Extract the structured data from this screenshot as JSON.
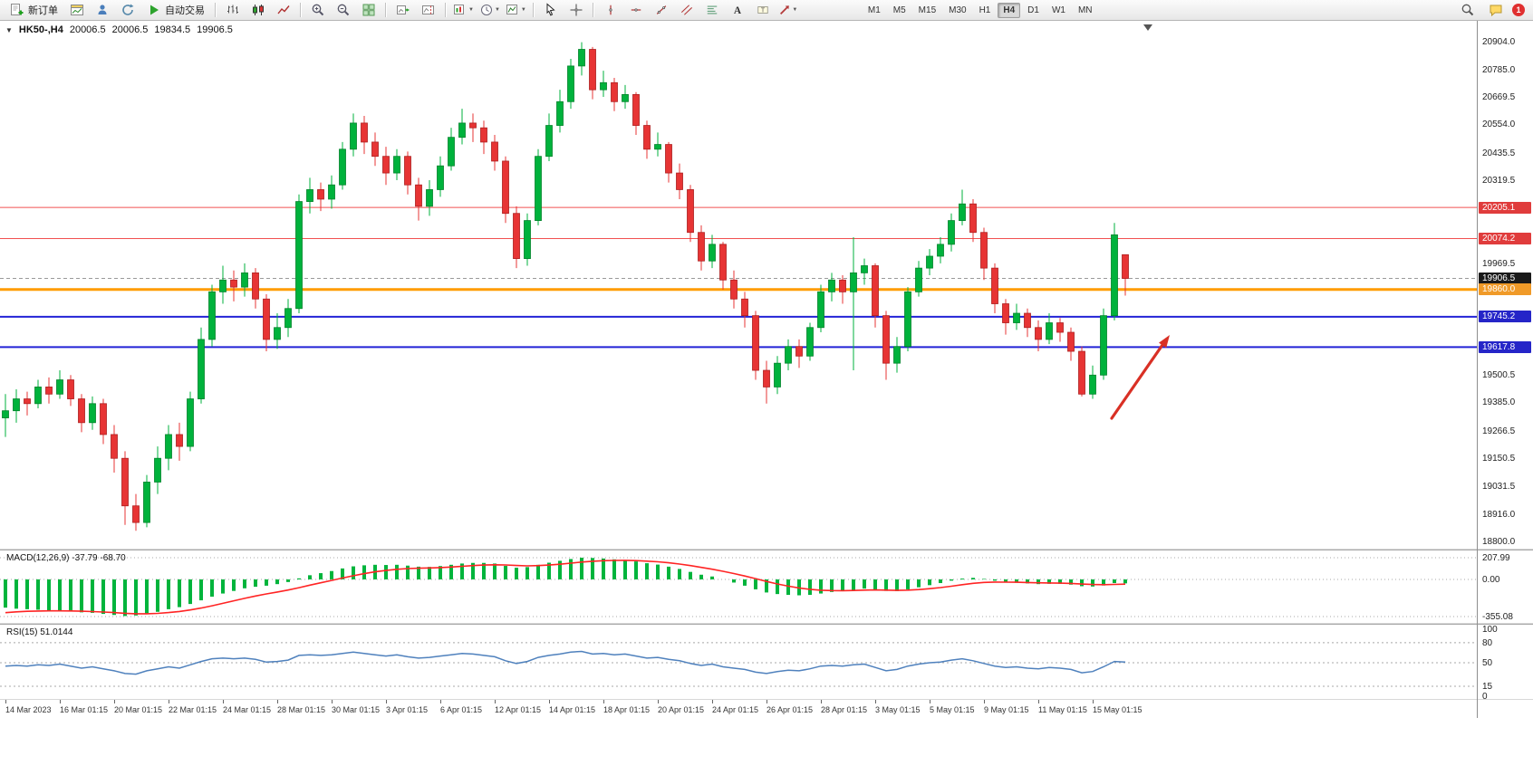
{
  "toolbar": {
    "new_order_label": "新订单",
    "auto_trading_label": "自动交易",
    "timeframes": [
      "M1",
      "M5",
      "M15",
      "M30",
      "H1",
      "H4",
      "D1",
      "W1",
      "MN"
    ],
    "active_timeframe": "H4",
    "notification_count": "1"
  },
  "icons": {
    "toolbar": [
      "new-order-icon",
      "new-chart-icon",
      "profiles-icon",
      "refresh-icon",
      "play-icon",
      "bars-chart-icon",
      "candlestick-chart-icon",
      "line-chart-icon",
      "zoom-in-icon",
      "zoom-out-icon",
      "tile-windows-icon",
      "auto-scroll-icon",
      "chart-shift-icon",
      "chart-dropdown-icon",
      "periods-clock-icon",
      "indicators-icon",
      "cursor-icon",
      "crosshair-icon",
      "vertical-line-icon",
      "horizontal-line-icon",
      "trendline-icon",
      "channel-icon",
      "fibonacci-icon",
      "text-icon",
      "label-icon",
      "arrow-shapes-icon",
      "search-icon",
      "chat-icon"
    ]
  },
  "header": {
    "symbol": "HK50-,H4",
    "open": "20006.5",
    "high": "20006.5",
    "low": "19834.5",
    "close": "19906.5"
  },
  "colors": {
    "bull": "#00b23c",
    "bull_stroke": "#00822a",
    "bear": "#e73434",
    "bear_stroke": "#ad1f1f",
    "level_red": "#f25050",
    "level_orange": "#ff9c00",
    "level_blue": "#2323d6",
    "badge_red": "#e03c3c",
    "badge_orange": "#f09a28",
    "badge_blue": "#2525c8",
    "badge_black": "#1a1a1a",
    "macd_hist": "#00b43c",
    "macd_signal": "#ff2424",
    "rsi_line": "#4f81bd",
    "arrow": "#d93025",
    "grid_dot": "#a8a8a8"
  },
  "chart": {
    "current_price": 19906.5,
    "price_axis": {
      "labels": [
        20904.0,
        20785.0,
        20669.5,
        20554.0,
        20435.5,
        20319.5,
        19969.5,
        19850.5,
        19500.5,
        19385.0,
        19266.5,
        19150.5,
        19031.5,
        18916.0,
        18800.0
      ],
      "badges": [
        {
          "text": "20205.1",
          "price": 20205.1,
          "bg": "badge_red"
        },
        {
          "text": "20074.2",
          "price": 20074.2,
          "bg": "badge_red"
        },
        {
          "text": "19906.5",
          "price": 19906.5,
          "bg": "badge_black"
        },
        {
          "text": "19860.0",
          "price": 19860.0,
          "bg": "badge_orange"
        },
        {
          "text": "19745.2",
          "price": 19745.2,
          "bg": "badge_blue"
        },
        {
          "text": "19617.8",
          "price": 19617.8,
          "bg": "badge_blue"
        }
      ]
    },
    "levels": [
      {
        "price": 20205.1,
        "color": "level_red",
        "width": 1
      },
      {
        "price": 20074.2,
        "color": "level_red",
        "width": 1
      },
      {
        "price": 19860.0,
        "color": "level_orange",
        "width": 3
      },
      {
        "price": 19745.2,
        "color": "level_blue",
        "width": 2
      },
      {
        "price": 19617.8,
        "color": "level_blue",
        "width": 2
      }
    ],
    "candles": [
      [
        19320,
        19420,
        19240,
        19350
      ],
      [
        19350,
        19440,
        19300,
        19400
      ],
      [
        19400,
        19430,
        19330,
        19380
      ],
      [
        19380,
        19480,
        19360,
        19450
      ],
      [
        19450,
        19490,
        19380,
        19420
      ],
      [
        19420,
        19520,
        19400,
        19480
      ],
      [
        19480,
        19500,
        19370,
        19400
      ],
      [
        19400,
        19420,
        19260,
        19300
      ],
      [
        19300,
        19410,
        19270,
        19380
      ],
      [
        19380,
        19400,
        19210,
        19250
      ],
      [
        19250,
        19290,
        19090,
        19150
      ],
      [
        19150,
        19180,
        18870,
        18950
      ],
      [
        18950,
        19000,
        18845,
        18880
      ],
      [
        18880,
        19080,
        18860,
        19050
      ],
      [
        19050,
        19200,
        19000,
        19150
      ],
      [
        19150,
        19290,
        19100,
        19250
      ],
      [
        19250,
        19300,
        19140,
        19200
      ],
      [
        19200,
        19430,
        19180,
        19400
      ],
      [
        19400,
        19700,
        19380,
        19650
      ],
      [
        19650,
        19880,
        19620,
        19850
      ],
      [
        19850,
        19960,
        19800,
        19900
      ],
      [
        19900,
        19940,
        19810,
        19870
      ],
      [
        19870,
        19970,
        19830,
        19930
      ],
      [
        19930,
        19950,
        19780,
        19820
      ],
      [
        19820,
        19840,
        19600,
        19650
      ],
      [
        19650,
        19760,
        19610,
        19700
      ],
      [
        19700,
        19820,
        19660,
        19780
      ],
      [
        19780,
        20260,
        19760,
        20230
      ],
      [
        20230,
        20330,
        20180,
        20280
      ],
      [
        20280,
        20310,
        20190,
        20240
      ],
      [
        20240,
        20340,
        20200,
        20300
      ],
      [
        20300,
        20480,
        20280,
        20450
      ],
      [
        20450,
        20600,
        20420,
        20560
      ],
      [
        20560,
        20590,
        20430,
        20480
      ],
      [
        20480,
        20520,
        20380,
        20420
      ],
      [
        20420,
        20460,
        20300,
        20350
      ],
      [
        20350,
        20450,
        20320,
        20420
      ],
      [
        20420,
        20440,
        20260,
        20300
      ],
      [
        20300,
        20330,
        20150,
        20210
      ],
      [
        20210,
        20320,
        20170,
        20280
      ],
      [
        20280,
        20420,
        20250,
        20380
      ],
      [
        20380,
        20540,
        20360,
        20500
      ],
      [
        20500,
        20620,
        20470,
        20560
      ],
      [
        20560,
        20600,
        20480,
        20540
      ],
      [
        20540,
        20570,
        20430,
        20480
      ],
      [
        20480,
        20510,
        20360,
        20400
      ],
      [
        20400,
        20420,
        20140,
        20180
      ],
      [
        20180,
        20210,
        19950,
        19990
      ],
      [
        19990,
        20180,
        19960,
        20150
      ],
      [
        20150,
        20450,
        20130,
        20420
      ],
      [
        20420,
        20600,
        20400,
        20550
      ],
      [
        20550,
        20700,
        20520,
        20650
      ],
      [
        20650,
        20830,
        20620,
        20800
      ],
      [
        20800,
        20900,
        20760,
        20870
      ],
      [
        20870,
        20880,
        20660,
        20700
      ],
      [
        20700,
        20780,
        20670,
        20730
      ],
      [
        20730,
        20750,
        20610,
        20650
      ],
      [
        20650,
        20720,
        20620,
        20680
      ],
      [
        20680,
        20690,
        20510,
        20550
      ],
      [
        20550,
        20570,
        20410,
        20450
      ],
      [
        20450,
        20520,
        20420,
        20470
      ],
      [
        20470,
        20480,
        20310,
        20350
      ],
      [
        20350,
        20390,
        20240,
        20280
      ],
      [
        20280,
        20300,
        20060,
        20100
      ],
      [
        20100,
        20130,
        19940,
        19980
      ],
      [
        19980,
        20090,
        19950,
        20050
      ],
      [
        20050,
        20060,
        19860,
        19900
      ],
      [
        19900,
        19940,
        19780,
        19820
      ],
      [
        19820,
        19850,
        19700,
        19750
      ],
      [
        19750,
        19770,
        19480,
        19520
      ],
      [
        19520,
        19560,
        19380,
        19450
      ],
      [
        19450,
        19580,
        19420,
        19550
      ],
      [
        19550,
        19650,
        19520,
        19620
      ],
      [
        19620,
        19650,
        19530,
        19580
      ],
      [
        19580,
        19720,
        19560,
        19700
      ],
      [
        19700,
        19880,
        19680,
        19850
      ],
      [
        19850,
        19930,
        19810,
        19900
      ],
      [
        19900,
        19920,
        19800,
        19850
      ],
      [
        19850,
        20080,
        19520,
        19930
      ],
      [
        19930,
        19990,
        19880,
        19960
      ],
      [
        19960,
        19970,
        19700,
        19750
      ],
      [
        19750,
        19770,
        19480,
        19550
      ],
      [
        19550,
        19660,
        19510,
        19620
      ],
      [
        19620,
        19870,
        19600,
        19850
      ],
      [
        19850,
        19980,
        19830,
        19950
      ],
      [
        19950,
        20030,
        19920,
        20000
      ],
      [
        20000,
        20080,
        19970,
        20050
      ],
      [
        20050,
        20180,
        20020,
        20150
      ],
      [
        20150,
        20280,
        20130,
        20220
      ],
      [
        20220,
        20240,
        20060,
        20100
      ],
      [
        20100,
        20120,
        19900,
        19950
      ],
      [
        19950,
        19970,
        19760,
        19800
      ],
      [
        19800,
        19820,
        19670,
        19720
      ],
      [
        19720,
        19800,
        19690,
        19760
      ],
      [
        19760,
        19780,
        19660,
        19700
      ],
      [
        19700,
        19730,
        19600,
        19650
      ],
      [
        19650,
        19760,
        19630,
        19720
      ],
      [
        19720,
        19740,
        19640,
        19680
      ],
      [
        19680,
        19700,
        19560,
        19600
      ],
      [
        19600,
        19620,
        19410,
        19420
      ],
      [
        19420,
        19540,
        19400,
        19500
      ],
      [
        19500,
        19780,
        19480,
        19750
      ],
      [
        19750,
        20140,
        19730,
        20090
      ],
      [
        20006.5,
        20006.5,
        19834.5,
        19906.5
      ]
    ]
  },
  "macd": {
    "label": "MACD(12,26,9) -37.79 -68.70",
    "axis_values": [
      207.99,
      0,
      -355.08
    ],
    "hist": [
      -270,
      -280,
      -285,
      -290,
      -295,
      -300,
      -305,
      -315,
      -320,
      -330,
      -340,
      -350,
      -345,
      -330,
      -310,
      -285,
      -265,
      -235,
      -200,
      -165,
      -135,
      -110,
      -85,
      -70,
      -60,
      -45,
      -25,
      10,
      40,
      60,
      80,
      105,
      125,
      135,
      140,
      138,
      140,
      132,
      122,
      120,
      128,
      140,
      152,
      158,
      158,
      152,
      130,
      112,
      118,
      140,
      160,
      178,
      195,
      208,
      205,
      200,
      192,
      185,
      172,
      155,
      142,
      122,
      100,
      72,
      45,
      28,
      0,
      -30,
      -60,
      -95,
      -125,
      -140,
      -148,
      -152,
      -148,
      -135,
      -120,
      -112,
      -100,
      -88,
      -95,
      -110,
      -112,
      -95,
      -75,
      -55,
      -35,
      -12,
      8,
      15,
      5,
      -12,
      -28,
      -32,
      -38,
      -45,
      -42,
      -42,
      -50,
      -65,
      -68,
      -58,
      -35,
      -37.79
    ]
  },
  "rsi": {
    "label": "RSI(15) 51.0144",
    "axis_values": [
      100,
      80,
      50,
      15,
      0
    ],
    "level_lines": [
      80,
      50,
      15
    ],
    "values": [
      45,
      46,
      45,
      47,
      46,
      48,
      45,
      42,
      44,
      41,
      38,
      34,
      33,
      38,
      41,
      44,
      42,
      47,
      52,
      56,
      57,
      56,
      57,
      55,
      51,
      52,
      54,
      61,
      62,
      61,
      62,
      64,
      66,
      64,
      62,
      60,
      62,
      59,
      57,
      58,
      60,
      62,
      64,
      63,
      61,
      59,
      53,
      49,
      52,
      58,
      61,
      63,
      66,
      67,
      63,
      64,
      62,
      63,
      60,
      57,
      58,
      55,
      53,
      49,
      46,
      48,
      44,
      42,
      40,
      36,
      34,
      37,
      39,
      38,
      41,
      45,
      46,
      45,
      47,
      48,
      43,
      38,
      40,
      45,
      48,
      50,
      51,
      54,
      56,
      53,
      49,
      45,
      43,
      44,
      42,
      41,
      43,
      42,
      40,
      35,
      37,
      44,
      52,
      51
    ]
  },
  "time_axis": {
    "labels": [
      "14 Mar 2023",
      "16 Mar 01:15",
      "20 Mar 01:15",
      "22 Mar 01:15",
      "24 Mar 01:15",
      "28 Mar 01:15",
      "30 Mar 01:15",
      "3 Apr 01:15",
      "6 Apr 01:15",
      "12 Apr 01:15",
      "14 Apr 01:15",
      "18 Apr 01:15",
      "20 Apr 01:15",
      "24 Apr 01:15",
      "26 Apr 01:15",
      "28 Apr 01:15",
      "3 May 01:15",
      "5 May 01:15",
      "9 May 01:15",
      "11 May 01:15",
      "15 May 01:15"
    ]
  }
}
